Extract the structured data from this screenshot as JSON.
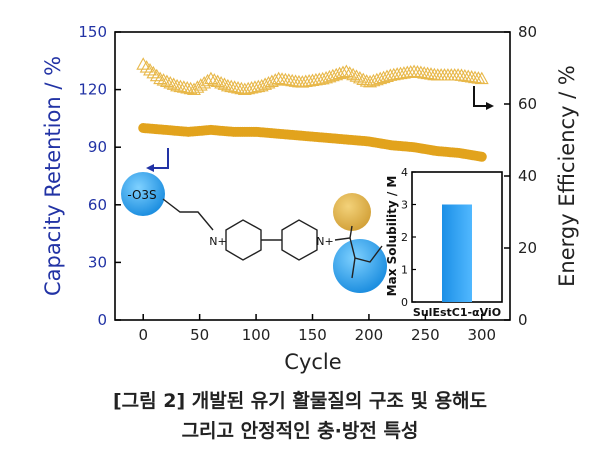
{
  "chart_data": {
    "type": "scatter",
    "xlabel": "Cycle",
    "ylabel_left": "Capacity Retention / %",
    "ylabel_right": "Energy Efficiency / %",
    "x_ticks": [
      "0",
      "50",
      "100",
      "150",
      "200",
      "250",
      "300"
    ],
    "y_left_ticks": [
      "0",
      "30",
      "60",
      "90",
      "120",
      "150"
    ],
    "y_right_ticks": [
      "0",
      "20",
      "40",
      "60",
      "80"
    ],
    "xlim": [
      -25,
      325
    ],
    "ylim_left": [
      0,
      150
    ],
    "ylim_right": [
      0,
      80
    ],
    "colors": {
      "left_axis": "#2233a5",
      "capacity": "#e2a31d",
      "efficiency": "#e8b84a"
    },
    "series": [
      {
        "axis": "left",
        "marker": "filled-circle",
        "x": [
          0,
          20,
          40,
          60,
          80,
          100,
          120,
          140,
          160,
          180,
          200,
          220,
          240,
          260,
          280,
          300
        ],
        "values": [
          100,
          99,
          98,
          99,
          98,
          98,
          97,
          96,
          95,
          94,
          93,
          91,
          90,
          88,
          87,
          85
        ]
      },
      {
        "axis": "right",
        "marker": "open-triangle",
        "x": [
          0,
          15,
          30,
          45,
          60,
          75,
          90,
          105,
          120,
          140,
          160,
          180,
          200,
          220,
          240,
          260,
          280,
          300
        ],
        "values": [
          71,
          67,
          65,
          64,
          67,
          65,
          64,
          65,
          67,
          66,
          67,
          69,
          66,
          68,
          69,
          68,
          68,
          67
        ]
      }
    ],
    "inset": {
      "type": "bar",
      "ylabel": "Max Solubility / M",
      "y_ticks": [
        "0",
        "1",
        "2",
        "3",
        "4"
      ],
      "ylim": [
        0,
        4
      ],
      "categories": [
        "SulEstC1-αViO"
      ],
      "values": [
        3.0
      ],
      "bar_color": "#2e9ff0"
    },
    "molecule_labels": {
      "sulfonate": "-O3S",
      "n_left": "N+",
      "n_right": "N+"
    }
  },
  "caption": {
    "line1": "[그림 2] 개발된 유기 활물질의 구조 및 용해도",
    "line2": "그리고 안정적인 충·방전 특성"
  }
}
